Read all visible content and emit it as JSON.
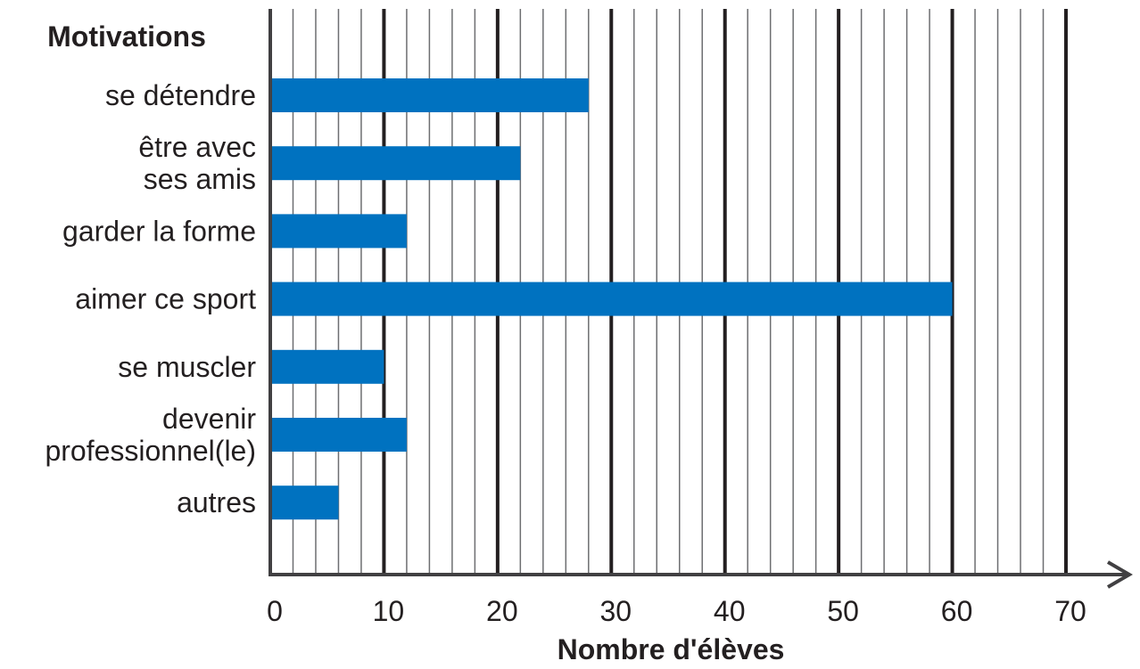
{
  "chart_data": {
    "type": "bar",
    "orientation": "horizontal",
    "y_axis_title": "Motivations",
    "xlabel": "Nombre d'élèves",
    "categories": [
      [
        "se détendre"
      ],
      [
        "être avec",
        "ses amis"
      ],
      [
        "garder la forme"
      ],
      [
        "aimer ce sport"
      ],
      [
        "se muscler"
      ],
      [
        "devenir",
        "professionnel(le)"
      ],
      [
        "autres"
      ]
    ],
    "values": [
      28,
      22,
      12,
      60,
      10,
      12,
      6
    ],
    "xlim": [
      0,
      70
    ],
    "x_ticks": [
      0,
      10,
      20,
      30,
      40,
      50,
      60,
      70
    ],
    "minor_step": 2,
    "grid": true,
    "bar_color": "#0072c0",
    "grid_major_color": "#231f20",
    "grid_minor_color": "#6d6e71",
    "axis_color": "#414042"
  }
}
